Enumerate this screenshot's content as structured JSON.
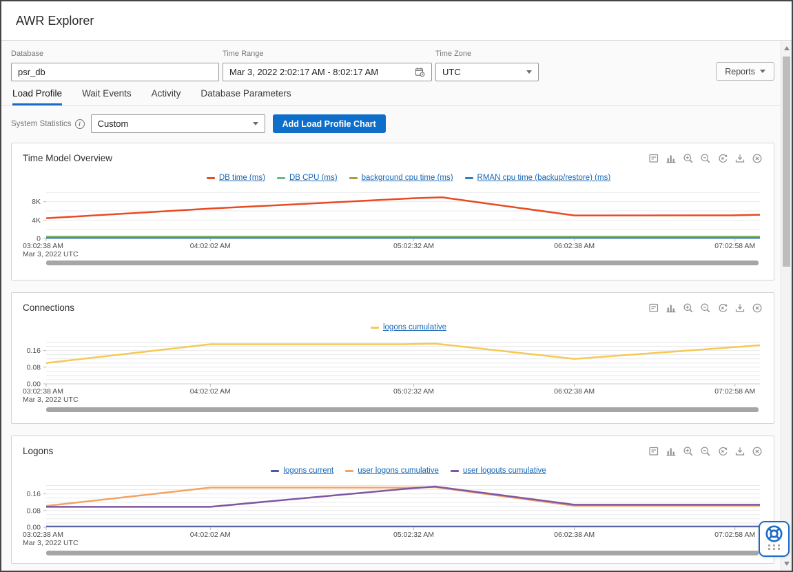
{
  "app": {
    "title": "AWR Explorer"
  },
  "filters": {
    "database": {
      "label": "Database",
      "value": "psr_db"
    },
    "time_range": {
      "label": "Time Range",
      "value": "Mar 3, 2022 2:02:17 AM - 8:02:17 AM"
    },
    "time_zone": {
      "label": "Time Zone",
      "value": "UTC"
    },
    "reports_button_label": "Reports"
  },
  "tabs": [
    {
      "label": "Load Profile",
      "active": true
    },
    {
      "label": "Wait Events"
    },
    {
      "label": "Activity"
    },
    {
      "label": "Database Parameters"
    }
  ],
  "load_profile_controls": {
    "system_statistics_label": "System Statistics",
    "statistic_select_value": "Custom",
    "add_chart_button_label": "Add Load Profile Chart"
  },
  "chart_toolbar_icons": [
    "view-data",
    "bar-chart",
    "zoom-in",
    "zoom-out",
    "reset-zoom",
    "download",
    "close"
  ],
  "colors": {
    "brand_blue": "#0d6fca",
    "tab_accent": "#1b69c7",
    "legend_link": "#1768b5",
    "help_widget_border": "#1b6cc8"
  },
  "x_axis": {
    "labels": [
      "03:02:38 AM",
      "04:02:02 AM",
      "05:02:32 AM",
      "06:02:38 AM",
      "07:02:58 AM"
    ],
    "positions": [
      0,
      0.23,
      0.515,
      0.74,
      0.965
    ],
    "sub_label": "Mar 3, 2022 UTC"
  },
  "chart_data": [
    {
      "title": "Time Model Overview",
      "type": "line",
      "ylim": [
        0,
        10200
      ],
      "minor_step": 2000,
      "yticks": [
        {
          "value": 0,
          "label": "0"
        },
        {
          "value": 4000,
          "label": "4K"
        },
        {
          "value": 8000,
          "label": "8K"
        }
      ],
      "series": [
        {
          "name": "DB time (ms)",
          "color": "#e84a21",
          "width": 2.5,
          "x": [
            0,
            0.23,
            0.515,
            0.555,
            0.74,
            0.96,
            1.0
          ],
          "y": [
            4400,
            6500,
            8750,
            8950,
            5000,
            5020,
            5150
          ]
        },
        {
          "name": "DB CPU (ms)",
          "color": "#62bd80",
          "width": 2,
          "x": [
            0,
            1
          ],
          "y": [
            430,
            430
          ]
        },
        {
          "name": "background cpu time (ms)",
          "color": "#a3a33c",
          "width": 2,
          "x": [
            0,
            1
          ],
          "y": [
            260,
            260
          ]
        },
        {
          "name": "RMAN cpu time (backup/restore) (ms)",
          "color": "#2e7fb8",
          "width": 2,
          "x": [
            0,
            1
          ],
          "y": [
            90,
            90
          ]
        }
      ]
    },
    {
      "title": "Connections",
      "type": "line",
      "ylim": [
        0,
        0.205
      ],
      "minor_step": 0.02,
      "yticks": [
        {
          "value": 0,
          "label": "0.00"
        },
        {
          "value": 0.08,
          "label": "0.08"
        },
        {
          "value": 0.16,
          "label": "0.16"
        }
      ],
      "series": [
        {
          "name": "logons cumulative",
          "color": "#f6c954",
          "width": 2.5,
          "x": [
            0,
            0.23,
            0.5,
            0.545,
            0.74,
            1.0
          ],
          "y": [
            0.1,
            0.19,
            0.19,
            0.193,
            0.12,
            0.185
          ]
        }
      ]
    },
    {
      "title": "Logons",
      "type": "line",
      "ylim": [
        0,
        0.205
      ],
      "minor_step": 0.02,
      "yticks": [
        {
          "value": 0,
          "label": "0.00"
        },
        {
          "value": 0.08,
          "label": "0.08"
        },
        {
          "value": 0.16,
          "label": "0.16"
        }
      ],
      "series": [
        {
          "name": "logons current",
          "color": "#4a5aa5",
          "width": 2,
          "x": [
            0,
            1
          ],
          "y": [
            0.004,
            0.004
          ]
        },
        {
          "name": "user logons cumulative",
          "color": "#f2a363",
          "width": 2.5,
          "x": [
            0,
            0.23,
            0.5,
            0.545,
            0.74,
            1.0
          ],
          "y": [
            0.102,
            0.19,
            0.19,
            0.192,
            0.103,
            0.103
          ]
        },
        {
          "name": "user logouts cumulative",
          "color": "#7e57a2",
          "width": 2.5,
          "x": [
            0,
            0.23,
            0.5,
            0.545,
            0.74,
            1.0
          ],
          "y": [
            0.098,
            0.098,
            0.183,
            0.195,
            0.108,
            0.108
          ]
        }
      ]
    }
  ]
}
